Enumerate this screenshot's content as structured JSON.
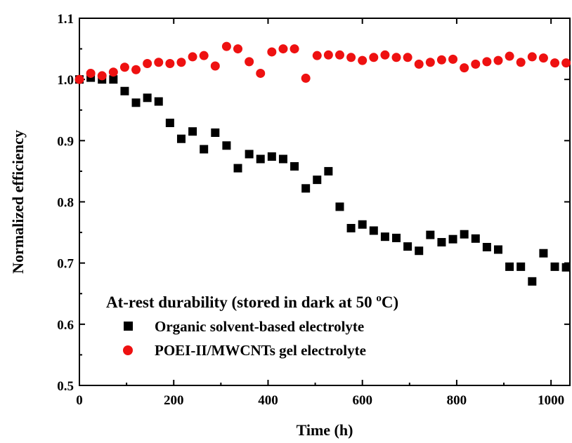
{
  "chart_data": {
    "type": "scatter",
    "title": "",
    "xlabel": "Time (h)",
    "ylabel": "Normalized efficiency",
    "xlim": [
      0,
      1040
    ],
    "ylim": [
      0.5,
      1.1
    ],
    "xticks": [
      "0",
      "200",
      "400",
      "600",
      "800",
      "1000"
    ],
    "yticks": [
      "0.5",
      "0.6",
      "0.7",
      "0.8",
      "0.9",
      "1.0",
      "1.1"
    ],
    "grid": false,
    "legend_position": "bottom-left",
    "annotation": {
      "prefix": "At-rest durability (stored in dark at 50 ",
      "superscript": "o",
      "suffix": "C)"
    },
    "series": [
      {
        "name": "Organic solvent-based electrolyte",
        "marker": "square",
        "color": "#000000",
        "x": [
          0,
          24,
          48,
          72,
          96,
          120,
          144,
          168,
          192,
          216,
          240,
          264,
          288,
          312,
          336,
          360,
          384,
          408,
          432,
          456,
          480,
          504,
          528,
          552,
          576,
          600,
          624,
          648,
          672,
          696,
          720,
          744,
          768,
          792,
          816,
          840,
          864,
          888,
          912,
          936,
          960,
          984,
          1008,
          1032
        ],
        "y": [
          1.0,
          1.003,
          1.0,
          1.0,
          0.981,
          0.962,
          0.97,
          0.964,
          0.929,
          0.903,
          0.915,
          0.886,
          0.913,
          0.892,
          0.855,
          0.878,
          0.87,
          0.874,
          0.87,
          0.858,
          0.822,
          0.836,
          0.85,
          0.792,
          0.757,
          0.763,
          0.753,
          0.743,
          0.741,
          0.727,
          0.72,
          0.746,
          0.734,
          0.739,
          0.747,
          0.74,
          0.726,
          0.722,
          0.694,
          0.694,
          0.67,
          0.716,
          0.694,
          0.693
        ]
      },
      {
        "name": "POEI-II/MWCNTs gel electrolyte",
        "marker": "circle",
        "color": "#ee1111",
        "x": [
          0,
          24,
          48,
          72,
          96,
          120,
          144,
          168,
          192,
          216,
          240,
          264,
          288,
          312,
          336,
          360,
          384,
          408,
          432,
          456,
          480,
          504,
          528,
          552,
          576,
          600,
          624,
          648,
          672,
          696,
          720,
          744,
          768,
          792,
          816,
          840,
          864,
          888,
          912,
          936,
          960,
          984,
          1008,
          1032
        ],
        "y": [
          1.0,
          1.01,
          1.006,
          1.012,
          1.02,
          1.016,
          1.026,
          1.028,
          1.026,
          1.028,
          1.037,
          1.039,
          1.022,
          1.054,
          1.05,
          1.029,
          1.01,
          1.045,
          1.05,
          1.05,
          1.002,
          1.039,
          1.04,
          1.04,
          1.036,
          1.031,
          1.036,
          1.04,
          1.036,
          1.036,
          1.025,
          1.028,
          1.032,
          1.033,
          1.019,
          1.025,
          1.029,
          1.031,
          1.038,
          1.028,
          1.037,
          1.035,
          1.027,
          1.027
        ]
      }
    ]
  }
}
